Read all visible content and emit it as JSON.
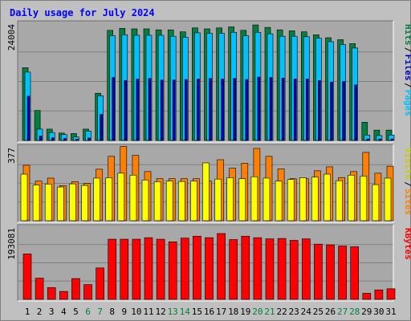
{
  "chart_data": {
    "type": "bar",
    "title": "Daily usage for July 2024",
    "categories": [
      "1",
      "2",
      "3",
      "4",
      "5",
      "6",
      "7",
      "8",
      "9",
      "10",
      "11",
      "12",
      "13",
      "14",
      "15",
      "16",
      "17",
      "18",
      "19",
      "20",
      "21",
      "22",
      "23",
      "24",
      "25",
      "26",
      "27",
      "28",
      "29",
      "30",
      "31"
    ],
    "weekend_days": [
      6,
      7,
      13,
      14,
      20,
      21,
      27,
      28
    ],
    "colors": {
      "background": "#c0c0c0",
      "plot": "#a8a8a8",
      "title": "#0000ff",
      "hits": "#008040",
      "files": "#00c0ff",
      "pages": "#0000c0",
      "visits": "#ffff00",
      "sites": "#ff8000",
      "kbytes": "#ff0000",
      "weekday_label": "#000000",
      "weekend_label": "#008040"
    },
    "panels": [
      {
        "name": "hits-files-pages",
        "scale_max_label": "24004",
        "ymax": 24004,
        "labels": [
          {
            "text": "Hits",
            "color": "#008040"
          },
          {
            "text": "/",
            "color": "#000000"
          },
          {
            "text": "Files",
            "color": "#0000c0"
          },
          {
            "text": "/",
            "color": "#000000"
          },
          {
            "text": "Pages",
            "color": "#00c0ff"
          }
        ],
        "series": [
          {
            "key": "hits",
            "values": [
              14800,
              6100,
              2300,
              1500,
              1400,
              2300,
              9600,
              22400,
              22800,
              22700,
              22700,
              22500,
              22500,
              22100,
              22900,
              22700,
              22900,
              23100,
              22400,
              23500,
              23000,
              22500,
              22300,
              22100,
              21500,
              20900,
              20500,
              19700,
              3700,
              2100,
              2100
            ]
          },
          {
            "key": "files",
            "values": [
              13900,
              2300,
              1600,
              1200,
              700,
              1900,
              9100,
              21300,
              21500,
              21400,
              21400,
              21400,
              21200,
              21000,
              21900,
              21800,
              21800,
              22000,
              21300,
              22000,
              21700,
              21200,
              21200,
              21100,
              20800,
              20100,
              19500,
              18800,
              1100,
              1000,
              1100
            ]
          },
          {
            "key": "pages",
            "values": [
              9000,
              900,
              550,
              400,
              250,
              500,
              5300,
              12800,
              12200,
              12500,
              12600,
              12300,
              12300,
              12400,
              12500,
              12600,
              12500,
              12600,
              12400,
              12900,
              12800,
              12700,
              12500,
              12500,
              12200,
              11900,
              12000,
              11300,
              300,
              300,
              300
            ]
          }
        ]
      },
      {
        "name": "visits-sites",
        "scale_max_label": "377",
        "ymax": 377,
        "labels": [
          {
            "text": "Visits",
            "color": "#cccc00"
          },
          {
            "text": "/",
            "color": "#000000"
          },
          {
            "text": "Sites",
            "color": "#ff8000"
          }
        ],
        "series": [
          {
            "key": "sites",
            "values": [
              280,
              200,
              215,
              177,
              197,
              188,
              260,
              325,
              375,
              330,
              248,
              212,
              212,
              212,
              212,
              200,
              308,
              265,
              290,
              365,
              325,
              262,
              212,
              212,
              252,
              272,
              218,
              248,
              345,
              240,
              275
            ]
          },
          {
            "key": "visits",
            "values": [
              235,
              180,
              185,
              170,
              186,
              178,
              215,
              217,
              240,
              230,
              205,
              197,
              200,
              198,
              200,
              292,
              210,
              217,
              212,
              222,
              215,
              200,
              208,
              217,
              220,
              235,
              202,
              230,
              225,
              182,
              215
            ]
          }
        ]
      },
      {
        "name": "kbytes",
        "scale_max_label": "193081",
        "ymax": 193081,
        "labels": [
          {
            "text": "KBytes",
            "color": "#ff0000"
          }
        ],
        "series": [
          {
            "key": "kbytes",
            "values": [
              120000,
              56000,
              31000,
              21000,
              55000,
              39000,
              83000,
              159000,
              159000,
              159000,
              163000,
              159000,
              152000,
              162000,
              167000,
              163000,
              174000,
              158000,
              167000,
              163000,
              160000,
              161000,
              156000,
              160000,
              146000,
              144000,
              141000,
              139000,
              16000,
              25000,
              28000
            ]
          }
        ]
      }
    ]
  }
}
